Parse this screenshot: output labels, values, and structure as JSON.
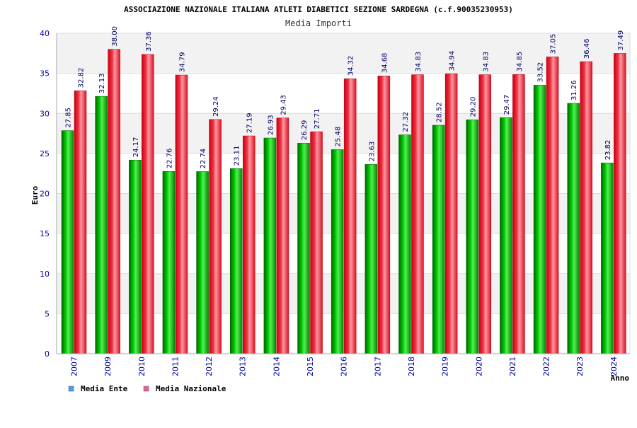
{
  "chart_data": {
    "type": "bar",
    "title": "ASSOCIAZIONE NAZIONALE ITALIANA ATLETI DIABETICI SEZIONE SARDEGNA (c.f.90035230953)",
    "subtitle": "Media Importi",
    "xlabel": "Anno",
    "ylabel": "Euro",
    "ylim": [
      0,
      40
    ],
    "yticks": [
      0,
      5,
      10,
      15,
      20,
      25,
      30,
      35,
      40
    ],
    "grid": true,
    "legend_position": "bottom-left",
    "categories": [
      "2007",
      "2009",
      "2010",
      "2011",
      "2012",
      "2013",
      "2014",
      "2015",
      "2016",
      "2017",
      "2018",
      "2019",
      "2020",
      "2021",
      "2022",
      "2023",
      "2024"
    ],
    "series": [
      {
        "name": "Media Ente",
        "color": "#00aa00",
        "legend_color": "#5599ee",
        "values": [
          27.85,
          32.13,
          24.17,
          22.76,
          22.74,
          23.11,
          26.93,
          26.29,
          25.48,
          23.63,
          27.32,
          28.52,
          29.2,
          29.47,
          33.52,
          31.26,
          23.82
        ],
        "labels": [
          "27.85",
          "32.13",
          "24.17",
          "22.76",
          "22.74",
          "23.11",
          "26.93",
          "26.29",
          "25.48",
          "23.63",
          "27.32",
          "28.52",
          "29.20",
          "29.47",
          "33.52",
          "31.26",
          "23.82"
        ]
      },
      {
        "name": "Media Nazionale",
        "color": "#ee2233",
        "legend_color": "#dd6699",
        "values": [
          32.82,
          38.0,
          37.36,
          34.79,
          29.24,
          27.19,
          29.43,
          27.71,
          34.32,
          34.68,
          34.83,
          34.94,
          34.83,
          34.85,
          37.05,
          36.46,
          37.49
        ],
        "labels": [
          "32.82",
          "38.00",
          "37.36",
          "34.79",
          "29.24",
          "27.19",
          "29.43",
          "27.71",
          "34.32",
          "34.68",
          "34.83",
          "34.94",
          "34.83",
          "34.85",
          "37.05",
          "36.46",
          "37.49"
        ]
      }
    ]
  }
}
